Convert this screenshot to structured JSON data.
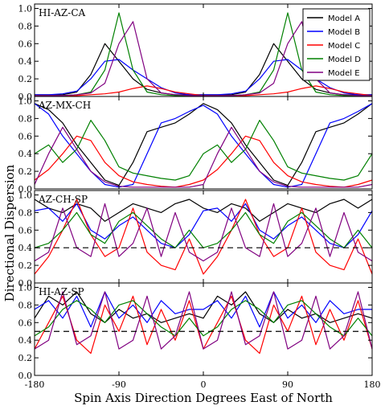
{
  "chart_data": {
    "type": "line",
    "xlabel": "Spin Axis Direction Degrees East of North",
    "ylabel": "Directional Dispersion",
    "xlim": [
      -180,
      180
    ],
    "ylim": [
      0.0,
      1.05
    ],
    "xticks": [
      "-180",
      "-90",
      "0",
      "90",
      "180"
    ],
    "xtick_values": [
      -180,
      -90,
      0,
      90,
      180
    ],
    "yticks": [
      "0.0",
      "0.2",
      "0.4",
      "0.6",
      "0.8",
      "1.0"
    ],
    "ytick_values": [
      0.0,
      0.2,
      0.4,
      0.6,
      0.8,
      1.0
    ],
    "legend": {
      "placement": "top-right",
      "entries": [
        {
          "name": "Model A",
          "color": "#000000"
        },
        {
          "name": "Model B",
          "color": "#0000ff"
        },
        {
          "name": "Model C",
          "color": "#ff0000"
        },
        {
          "name": "Model D",
          "color": "#008000"
        },
        {
          "name": "Model E",
          "color": "#800080"
        }
      ]
    },
    "x": [
      -180,
      -165,
      -150,
      -135,
      -120,
      -105,
      -90,
      -75,
      -60,
      -45,
      -30,
      -15,
      0,
      15,
      30,
      45,
      60,
      75,
      90,
      105,
      120,
      135,
      150,
      165,
      180
    ],
    "panels": [
      {
        "title": "HI-AZ-CA",
        "reference_line": null,
        "series": [
          {
            "name": "Model A",
            "values": [
              0.02,
              0.02,
              0.02,
              0.05,
              0.25,
              0.6,
              0.4,
              0.2,
              0.08,
              0.04,
              0.02,
              0.02,
              0.02,
              0.02,
              0.02,
              0.05,
              0.25,
              0.6,
              0.4,
              0.2,
              0.08,
              0.04,
              0.02,
              0.02,
              0.02
            ]
          },
          {
            "name": "Model B",
            "values": [
              0.02,
              0.02,
              0.03,
              0.06,
              0.2,
              0.4,
              0.42,
              0.3,
              0.2,
              0.1,
              0.04,
              0.02,
              0.02,
              0.02,
              0.03,
              0.06,
              0.2,
              0.4,
              0.42,
              0.3,
              0.2,
              0.1,
              0.04,
              0.02,
              0.02
            ]
          },
          {
            "name": "Model C",
            "values": [
              0.01,
              0.01,
              0.01,
              0.01,
              0.02,
              0.03,
              0.05,
              0.09,
              0.12,
              0.09,
              0.05,
              0.03,
              0.01,
              0.01,
              0.01,
              0.01,
              0.02,
              0.03,
              0.05,
              0.09,
              0.12,
              0.09,
              0.05,
              0.03,
              0.01
            ]
          },
          {
            "name": "Model D",
            "values": [
              0.01,
              0.01,
              0.01,
              0.02,
              0.05,
              0.3,
              0.95,
              0.3,
              0.05,
              0.02,
              0.01,
              0.01,
              0.01,
              0.01,
              0.01,
              0.02,
              0.05,
              0.3,
              0.95,
              0.3,
              0.05,
              0.02,
              0.01,
              0.01,
              0.01
            ]
          },
          {
            "name": "Model E",
            "values": [
              0.01,
              0.01,
              0.01,
              0.02,
              0.04,
              0.15,
              0.6,
              0.85,
              0.2,
              0.04,
              0.02,
              0.01,
              0.01,
              0.01,
              0.01,
              0.02,
              0.04,
              0.15,
              0.6,
              0.85,
              0.2,
              0.04,
              0.02,
              0.01,
              0.01
            ]
          }
        ]
      },
      {
        "title": "AZ-MX-CH",
        "reference_line": null,
        "series": [
          {
            "name": "Model A",
            "values": [
              0.97,
              0.9,
              0.75,
              0.5,
              0.3,
              0.1,
              0.04,
              0.3,
              0.65,
              0.7,
              0.75,
              0.85,
              0.97,
              0.9,
              0.75,
              0.5,
              0.3,
              0.1,
              0.04,
              0.3,
              0.65,
              0.7,
              0.75,
              0.85,
              0.97
            ]
          },
          {
            "name": "Model B",
            "values": [
              0.97,
              0.85,
              0.6,
              0.4,
              0.2,
              0.05,
              0.02,
              0.05,
              0.4,
              0.75,
              0.8,
              0.88,
              0.95,
              0.85,
              0.6,
              0.4,
              0.2,
              0.05,
              0.02,
              0.05,
              0.4,
              0.75,
              0.8,
              0.88,
              0.97
            ]
          },
          {
            "name": "Model C",
            "values": [
              0.1,
              0.22,
              0.4,
              0.6,
              0.55,
              0.3,
              0.15,
              0.08,
              0.05,
              0.03,
              0.02,
              0.05,
              0.1,
              0.22,
              0.4,
              0.6,
              0.55,
              0.3,
              0.15,
              0.08,
              0.05,
              0.03,
              0.02,
              0.05,
              0.1
            ]
          },
          {
            "name": "Model D",
            "values": [
              0.4,
              0.5,
              0.3,
              0.45,
              0.78,
              0.55,
              0.25,
              0.18,
              0.15,
              0.12,
              0.1,
              0.15,
              0.4,
              0.5,
              0.3,
              0.45,
              0.78,
              0.55,
              0.25,
              0.18,
              0.15,
              0.12,
              0.1,
              0.15,
              0.4
            ]
          },
          {
            "name": "Model E",
            "values": [
              0.05,
              0.4,
              0.7,
              0.45,
              0.2,
              0.08,
              0.03,
              0.02,
              0.02,
              0.02,
              0.02,
              0.02,
              0.05,
              0.4,
              0.7,
              0.45,
              0.2,
              0.08,
              0.03,
              0.02,
              0.02,
              0.02,
              0.02,
              0.02,
              0.05
            ]
          }
        ]
      },
      {
        "title": "AZ-CH-SP",
        "reference_line": 0.4,
        "series": [
          {
            "name": "Model A",
            "values": [
              0.95,
              0.85,
              0.8,
              0.9,
              0.85,
              0.7,
              0.8,
              0.9,
              0.85,
              0.8,
              0.9,
              0.95,
              0.85,
              0.8,
              0.9,
              0.85,
              0.7,
              0.8,
              0.9,
              0.85,
              0.8,
              0.9,
              0.95,
              0.85,
              0.95
            ]
          },
          {
            "name": "Model B",
            "values": [
              0.82,
              0.85,
              0.7,
              0.9,
              0.6,
              0.5,
              0.65,
              0.75,
              0.6,
              0.45,
              0.4,
              0.55,
              0.82,
              0.85,
              0.7,
              0.9,
              0.6,
              0.5,
              0.65,
              0.75,
              0.6,
              0.45,
              0.4,
              0.55,
              0.82
            ]
          },
          {
            "name": "Model C",
            "values": [
              0.1,
              0.3,
              0.6,
              0.95,
              0.55,
              0.3,
              0.4,
              0.85,
              0.35,
              0.2,
              0.15,
              0.5,
              0.1,
              0.3,
              0.6,
              0.95,
              0.55,
              0.3,
              0.4,
              0.85,
              0.35,
              0.2,
              0.15,
              0.5,
              0.1
            ]
          },
          {
            "name": "Model D",
            "values": [
              0.4,
              0.45,
              0.6,
              0.8,
              0.55,
              0.45,
              0.7,
              0.8,
              0.65,
              0.5,
              0.4,
              0.6,
              0.4,
              0.45,
              0.6,
              0.8,
              0.55,
              0.45,
              0.7,
              0.8,
              0.65,
              0.5,
              0.4,
              0.6,
              0.4
            ]
          },
          {
            "name": "Model E",
            "values": [
              0.25,
              0.35,
              0.85,
              0.4,
              0.3,
              0.9,
              0.3,
              0.45,
              0.85,
              0.3,
              0.8,
              0.35,
              0.25,
              0.35,
              0.85,
              0.4,
              0.3,
              0.9,
              0.3,
              0.45,
              0.85,
              0.3,
              0.8,
              0.35,
              0.25
            ]
          }
        ]
      },
      {
        "title": "HI-AZ-SP",
        "reference_line": 0.5,
        "series": [
          {
            "name": "Model A",
            "values": [
              0.65,
              0.9,
              0.8,
              0.95,
              0.7,
              0.6,
              0.75,
              0.65,
              0.7,
              0.6,
              0.65,
              0.7,
              0.65,
              0.9,
              0.8,
              0.95,
              0.7,
              0.6,
              0.75,
              0.65,
              0.7,
              0.6,
              0.65,
              0.7,
              0.65
            ]
          },
          {
            "name": "Model B",
            "values": [
              0.75,
              0.85,
              0.65,
              0.9,
              0.55,
              0.95,
              0.65,
              0.8,
              0.6,
              0.85,
              0.7,
              0.75,
              0.75,
              0.85,
              0.65,
              0.9,
              0.55,
              0.95,
              0.65,
              0.8,
              0.6,
              0.85,
              0.7,
              0.75,
              0.75
            ]
          },
          {
            "name": "Model C",
            "values": [
              0.3,
              0.6,
              0.9,
              0.4,
              0.25,
              0.8,
              0.5,
              0.9,
              0.35,
              0.75,
              0.4,
              0.85,
              0.3,
              0.6,
              0.9,
              0.4,
              0.25,
              0.8,
              0.5,
              0.9,
              0.35,
              0.75,
              0.4,
              0.85,
              0.3
            ]
          },
          {
            "name": "Model D",
            "values": [
              0.45,
              0.55,
              0.75,
              0.85,
              0.75,
              0.6,
              0.8,
              0.85,
              0.7,
              0.55,
              0.45,
              0.65,
              0.45,
              0.55,
              0.75,
              0.85,
              0.75,
              0.6,
              0.8,
              0.85,
              0.7,
              0.55,
              0.45,
              0.65,
              0.45
            ]
          },
          {
            "name": "Model E",
            "values": [
              0.3,
              0.4,
              0.95,
              0.35,
              0.45,
              0.95,
              0.3,
              0.4,
              0.9,
              0.3,
              0.45,
              0.95,
              0.3,
              0.4,
              0.95,
              0.35,
              0.45,
              0.95,
              0.3,
              0.4,
              0.9,
              0.3,
              0.45,
              0.95,
              0.3
            ]
          }
        ]
      }
    ]
  }
}
